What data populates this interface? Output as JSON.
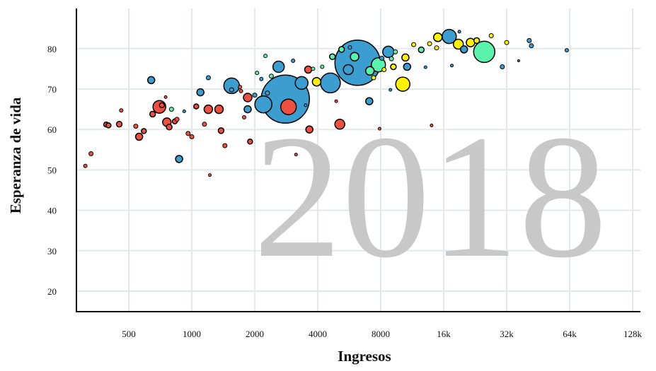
{
  "chart_data": {
    "type": "scatter",
    "subtype": "bubble",
    "xlabel": "Ingresos",
    "ylabel": "Esperanza de vida",
    "x_scale": "log2",
    "xlim": [
      300,
      128000
    ],
    "ylim": [
      15,
      86
    ],
    "x_ticks": [
      500,
      1000,
      2000,
      4000,
      8000,
      16000,
      32000,
      64000,
      128000
    ],
    "x_tick_labels": [
      "500",
      "1000",
      "2000",
      "4000",
      "8000",
      "16k",
      "32k",
      "64k",
      "128k"
    ],
    "y_ticks": [
      20,
      30,
      40,
      50,
      60,
      70,
      80
    ],
    "y_tick_labels": [
      "20",
      "30",
      "40",
      "50",
      "60",
      "70",
      "80"
    ],
    "grid": true,
    "year_label": "2018",
    "colors": {
      "africa": "#ef4f3f",
      "asia": "#3c9dd0",
      "americas": "#59f3ae",
      "europe": "#fff200",
      "background_year": "#c8c8c8",
      "grid": "#e3e9ea"
    },
    "points": [
      {
        "x": 2800,
        "y": 67.5,
        "size": 34,
        "region": "asia"
      },
      {
        "x": 6200,
        "y": 76.5,
        "size": 32,
        "region": "asia"
      },
      {
        "x": 25000,
        "y": 79.2,
        "size": 15,
        "region": "americas"
      },
      {
        "x": 1550,
        "y": 70.8,
        "size": 11,
        "region": "asia"
      },
      {
        "x": 4600,
        "y": 71.5,
        "size": 14,
        "region": "asia"
      },
      {
        "x": 2200,
        "y": 66.2,
        "size": 12,
        "region": "asia"
      },
      {
        "x": 2900,
        "y": 65.6,
        "size": 11,
        "region": "africa"
      },
      {
        "x": 3350,
        "y": 71.5,
        "size": 9,
        "region": "asia"
      },
      {
        "x": 7800,
        "y": 76.0,
        "size": 10,
        "region": "americas"
      },
      {
        "x": 10200,
        "y": 71.2,
        "size": 10,
        "region": "europe"
      },
      {
        "x": 17000,
        "y": 83.0,
        "size": 10,
        "region": "asia"
      },
      {
        "x": 2600,
        "y": 75.5,
        "size": 8,
        "region": "asia"
      },
      {
        "x": 8700,
        "y": 79.2,
        "size": 8,
        "region": "asia"
      },
      {
        "x": 5100,
        "y": 61.3,
        "size": 7,
        "region": "africa"
      },
      {
        "x": 700,
        "y": 65.6,
        "size": 9,
        "region": "africa"
      },
      {
        "x": 1200,
        "y": 65.0,
        "size": 6,
        "region": "africa"
      },
      {
        "x": 1350,
        "y": 65.0,
        "size": 6,
        "region": "africa"
      },
      {
        "x": 760,
        "y": 61.8,
        "size": 6,
        "region": "africa"
      },
      {
        "x": 560,
        "y": 58.2,
        "size": 5,
        "region": "africa"
      },
      {
        "x": 640,
        "y": 72.2,
        "size": 5,
        "region": "asia"
      },
      {
        "x": 870,
        "y": 52.7,
        "size": 5,
        "region": "asia"
      },
      {
        "x": 1100,
        "y": 69.2,
        "size": 5,
        "region": "asia"
      },
      {
        "x": 1850,
        "y": 67.9,
        "size": 6,
        "region": "africa"
      },
      {
        "x": 1850,
        "y": 65.0,
        "size": 5,
        "region": "asia"
      },
      {
        "x": 3600,
        "y": 74.8,
        "size": 5,
        "region": "africa"
      },
      {
        "x": 3650,
        "y": 60.0,
        "size": 5,
        "region": "africa"
      },
      {
        "x": 3950,
        "y": 71.8,
        "size": 6,
        "region": "europe"
      },
      {
        "x": 5600,
        "y": 74.8,
        "size": 7,
        "region": "asia"
      },
      {
        "x": 6000,
        "y": 78.0,
        "size": 6,
        "region": "americas"
      },
      {
        "x": 7100,
        "y": 74.5,
        "size": 6,
        "region": "americas"
      },
      {
        "x": 7050,
        "y": 67.0,
        "size": 5,
        "region": "asia"
      },
      {
        "x": 10500,
        "y": 77.8,
        "size": 5,
        "region": "europe"
      },
      {
        "x": 10700,
        "y": 75.5,
        "size": 5,
        "region": "asia"
      },
      {
        "x": 15000,
        "y": 82.8,
        "size": 6,
        "region": "europe"
      },
      {
        "x": 18800,
        "y": 81.1,
        "size": 7,
        "region": "europe"
      },
      {
        "x": 21500,
        "y": 81.5,
        "size": 6,
        "region": "europe"
      },
      {
        "x": 20000,
        "y": 79.8,
        "size": 5,
        "region": "asia"
      },
      {
        "x": 9200,
        "y": 75.5,
        "size": 4,
        "region": "europe"
      },
      {
        "x": 11500,
        "y": 81.0,
        "size": 3,
        "region": "europe"
      },
      {
        "x": 12500,
        "y": 79.7,
        "size": 4,
        "region": "americas"
      },
      {
        "x": 13700,
        "y": 81.2,
        "size": 3,
        "region": "europe"
      },
      {
        "x": 14800,
        "y": 80.2,
        "size": 3,
        "region": "europe"
      },
      {
        "x": 23000,
        "y": 82.0,
        "size": 4,
        "region": "europe"
      },
      {
        "x": 27000,
        "y": 83.2,
        "size": 3,
        "region": "europe"
      },
      {
        "x": 30500,
        "y": 75.5,
        "size": 3,
        "region": "asia"
      },
      {
        "x": 32000,
        "y": 81.5,
        "size": 3,
        "region": "europe"
      },
      {
        "x": 41000,
        "y": 82.0,
        "size": 3,
        "region": "asia"
      },
      {
        "x": 42000,
        "y": 80.7,
        "size": 3,
        "region": "asia"
      },
      {
        "x": 62000,
        "y": 79.6,
        "size": 2.5,
        "region": "asia"
      },
      {
        "x": 36500,
        "y": 77.0,
        "size": 1.5,
        "region": "asia"
      },
      {
        "x": 4700,
        "y": 78.0,
        "size": 4,
        "region": "americas"
      },
      {
        "x": 5200,
        "y": 79.8,
        "size": 4,
        "region": "americas"
      },
      {
        "x": 7400,
        "y": 72.8,
        "size": 3,
        "region": "europe"
      },
      {
        "x": 8100,
        "y": 77.6,
        "size": 3,
        "region": "asia"
      },
      {
        "x": 8300,
        "y": 74.8,
        "size": 3,
        "region": "europe"
      },
      {
        "x": 9400,
        "y": 79.2,
        "size": 3,
        "region": "americas"
      },
      {
        "x": 9000,
        "y": 77.5,
        "size": 3,
        "region": "americas"
      },
      {
        "x": 2400,
        "y": 73.2,
        "size": 3,
        "region": "americas"
      },
      {
        "x": 2050,
        "y": 74.0,
        "size": 2.5,
        "region": "americas"
      },
      {
        "x": 2250,
        "y": 78.2,
        "size": 2.5,
        "region": "americas"
      },
      {
        "x": 3050,
        "y": 77.0,
        "size": 2.5,
        "region": "asia"
      },
      {
        "x": 3800,
        "y": 75.0,
        "size": 2.5,
        "region": "americas"
      },
      {
        "x": 4200,
        "y": 75.5,
        "size": 2.5,
        "region": "americas"
      },
      {
        "x": 310,
        "y": 51.0,
        "size": 2.5,
        "region": "africa"
      },
      {
        "x": 330,
        "y": 54.0,
        "size": 3,
        "region": "africa"
      },
      {
        "x": 390,
        "y": 61.2,
        "size": 3.5,
        "region": "africa"
      },
      {
        "x": 400,
        "y": 61.0,
        "size": 3.5,
        "region": "africa"
      },
      {
        "x": 450,
        "y": 61.3,
        "size": 4,
        "region": "africa"
      },
      {
        "x": 460,
        "y": 64.7,
        "size": 2.5,
        "region": "africa"
      },
      {
        "x": 540,
        "y": 60.8,
        "size": 3,
        "region": "africa"
      },
      {
        "x": 590,
        "y": 59.6,
        "size": 3.5,
        "region": "africa"
      },
      {
        "x": 650,
        "y": 63.8,
        "size": 4,
        "region": "africa"
      },
      {
        "x": 720,
        "y": 66.0,
        "size": 3.5,
        "region": "africa"
      },
      {
        "x": 780,
        "y": 60.6,
        "size": 4,
        "region": "africa"
      },
      {
        "x": 800,
        "y": 65.0,
        "size": 3,
        "region": "americas"
      },
      {
        "x": 830,
        "y": 62.0,
        "size": 3.5,
        "region": "africa"
      },
      {
        "x": 850,
        "y": 62.5,
        "size": 3,
        "region": "africa"
      },
      {
        "x": 750,
        "y": 68.0,
        "size": 2,
        "region": "africa"
      },
      {
        "x": 960,
        "y": 59.0,
        "size": 3,
        "region": "africa"
      },
      {
        "x": 1000,
        "y": 58.2,
        "size": 3,
        "region": "africa"
      },
      {
        "x": 1050,
        "y": 65.7,
        "size": 3.5,
        "region": "africa"
      },
      {
        "x": 1150,
        "y": 61.3,
        "size": 3,
        "region": "africa"
      },
      {
        "x": 1200,
        "y": 72.8,
        "size": 3,
        "region": "asia"
      },
      {
        "x": 1380,
        "y": 59.7,
        "size": 4,
        "region": "africa"
      },
      {
        "x": 1440,
        "y": 56.0,
        "size": 3,
        "region": "africa"
      },
      {
        "x": 1550,
        "y": 69.8,
        "size": 3,
        "region": "asia"
      },
      {
        "x": 1720,
        "y": 69.5,
        "size": 2.5,
        "region": "africa"
      },
      {
        "x": 1780,
        "y": 63.0,
        "size": 2.5,
        "region": "africa"
      },
      {
        "x": 1900,
        "y": 57.0,
        "size": 3.5,
        "region": "africa"
      },
      {
        "x": 2000,
        "y": 68.5,
        "size": 3,
        "region": "asia"
      },
      {
        "x": 2300,
        "y": 69.0,
        "size": 3,
        "region": "asia"
      },
      {
        "x": 3150,
        "y": 53.8,
        "size": 2,
        "region": "africa"
      },
      {
        "x": 3500,
        "y": 66.0,
        "size": 2,
        "region": "asia"
      },
      {
        "x": 4900,
        "y": 67.0,
        "size": 2,
        "region": "africa"
      },
      {
        "x": 5700,
        "y": 80.3,
        "size": 2.5,
        "region": "asia"
      },
      {
        "x": 7900,
        "y": 60.2,
        "size": 2,
        "region": "africa"
      },
      {
        "x": 8900,
        "y": 69.8,
        "size": 2,
        "region": "asia"
      },
      {
        "x": 14000,
        "y": 61.0,
        "size": 2,
        "region": "africa"
      },
      {
        "x": 13100,
        "y": 75.4,
        "size": 2,
        "region": "asia"
      },
      {
        "x": 17500,
        "y": 75.8,
        "size": 2,
        "region": "asia"
      },
      {
        "x": 19000,
        "y": 84.2,
        "size": 2,
        "region": "asia"
      },
      {
        "x": 1220,
        "y": 48.7,
        "size": 2,
        "region": "africa"
      },
      {
        "x": 920,
        "y": 64.5,
        "size": 2,
        "region": "asia"
      },
      {
        "x": 1700,
        "y": 70.5,
        "size": 2.5,
        "region": "africa"
      },
      {
        "x": 2150,
        "y": 72.5,
        "size": 2.5,
        "region": "asia"
      }
    ]
  }
}
